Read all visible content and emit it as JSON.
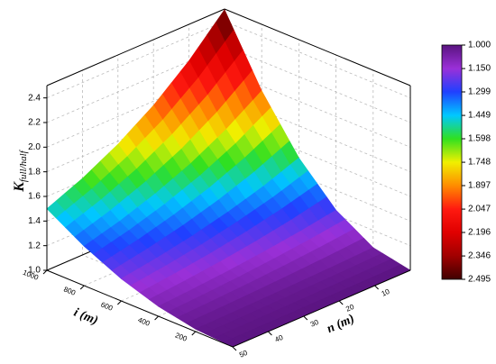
{
  "chart_data": {
    "type": "surface",
    "xlabel": "i (m)",
    "ylabel": "n (m)",
    "zlabel": "K",
    "zlabel_subscript": "full/half",
    "x": [
      0,
      200,
      400,
      600,
      800,
      1000
    ],
    "y": [
      0,
      10,
      20,
      30,
      40,
      50
    ],
    "z": [
      [
        1,
        1.06,
        1.24,
        1.54,
        1.96,
        2.495
      ],
      [
        1,
        1.048,
        1.193,
        1.433,
        1.771,
        2.204
      ],
      [
        1,
        1.039,
        1.155,
        1.348,
        1.618,
        1.966
      ],
      [
        1,
        1.031,
        1.124,
        1.279,
        1.496,
        1.775
      ],
      [
        1,
        1.025,
        1.1,
        1.224,
        1.398,
        1.622
      ],
      [
        1,
        1.02,
        1.08,
        1.18,
        1.32,
        1.5
      ]
    ],
    "xlim": [
      0,
      1000
    ],
    "ylim": [
      0,
      50
    ],
    "zlim": [
      1,
      2.5
    ],
    "xticks": [
      200,
      400,
      600,
      800,
      1000
    ],
    "yticks": [
      10,
      20,
      30,
      40,
      50
    ],
    "zticks": [
      {
        "value": 1,
        "label": "1.0"
      },
      1.2,
      1.4,
      1.6,
      1.8,
      {
        "value": 2,
        "label": "2.0"
      },
      2.2,
      2.4
    ],
    "grid": true,
    "colorbar_ticks": [
      {
        "value": 1,
        "label": "1.000"
      },
      {
        "value": 1.15,
        "label": "1.150"
      },
      1.299,
      1.449,
      1.598,
      1.748,
      1.897,
      2.047,
      2.196,
      2.346,
      2.495
    ],
    "colormap": [
      "#5a1480",
      "#9a30d8",
      "#2040ff",
      "#00c8ff",
      "#30e020",
      "#f0f000",
      "#ff8c00",
      "#ff1a10",
      "#e00000",
      "#a00000",
      "#400000"
    ]
  }
}
